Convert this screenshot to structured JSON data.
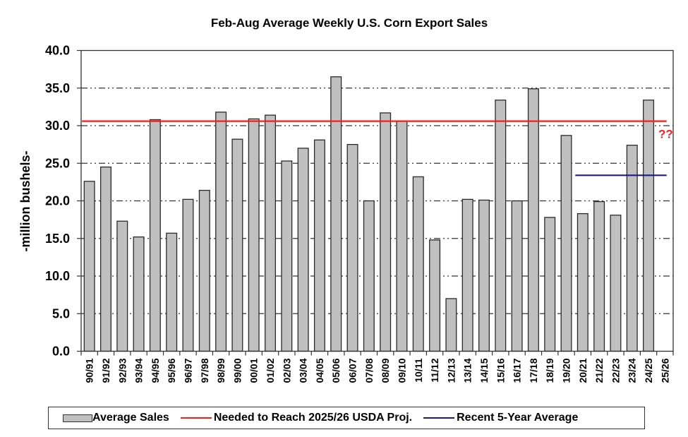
{
  "chart_data": {
    "type": "bar",
    "title": "Feb-Aug Average Weekly U.S. Corn Export Sales",
    "xlabel": "",
    "ylabel": "-million bushels-",
    "ylim": [
      0,
      40
    ],
    "yticks": [
      "0.0",
      "5.0",
      "10.0",
      "15.0",
      "20.0",
      "25.0",
      "30.0",
      "35.0",
      "40.0"
    ],
    "ytick_values": [
      0,
      5,
      10,
      15,
      20,
      25,
      30,
      35,
      40
    ],
    "grid": true,
    "categories": [
      "90/91",
      "91/92",
      "92/93",
      "93/94",
      "94/95",
      "95/96",
      "96/97",
      "97/98",
      "98/99",
      "99/00",
      "00/01",
      "01/02",
      "02/03",
      "03/04",
      "04/05",
      "05/06",
      "06/07",
      "07/08",
      "08/09",
      "09/10",
      "10/11",
      "11/12",
      "12/13",
      "13/14",
      "14/15",
      "15/16",
      "16/17",
      "17/18",
      "18/19",
      "19/20",
      "20/21",
      "21/22",
      "22/23",
      "23/24",
      "24/25",
      "25/26"
    ],
    "series": [
      {
        "name": "Average Sales",
        "type": "bar",
        "color": "#c0c0c0",
        "values": [
          22.6,
          24.5,
          17.3,
          15.2,
          30.8,
          15.7,
          20.2,
          21.4,
          31.8,
          28.2,
          30.9,
          31.4,
          25.3,
          27.0,
          28.1,
          36.5,
          27.5,
          20.0,
          31.7,
          30.6,
          23.2,
          14.8,
          7.0,
          20.2,
          20.1,
          33.4,
          20.0,
          34.9,
          17.8,
          28.7,
          18.3,
          19.9,
          18.1,
          27.4,
          33.4,
          null
        ]
      },
      {
        "name": "Needed to Reach 2025/26 USDA Proj.",
        "type": "hline",
        "color": "#ff1a1a",
        "value": 30.6,
        "x_start": "90/91",
        "x_end": "25/26"
      },
      {
        "name": "Recent 5-Year Average",
        "type": "hline",
        "color": "#1a1a8c",
        "value": 23.4,
        "x_start": "20/21",
        "x_end": "25/26"
      }
    ],
    "annotations": [
      {
        "text": "??",
        "category": "25/26",
        "color": "#ff1a1a"
      }
    ],
    "legend": {
      "placement": "bottom",
      "entries": [
        "Average Sales",
        "Needed to Reach 2025/26 USDA Proj.",
        "Recent 5-Year Average"
      ]
    }
  }
}
